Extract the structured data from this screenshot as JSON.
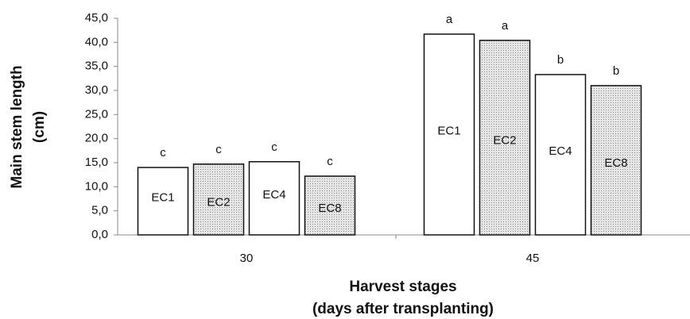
{
  "chart_data": {
    "type": "bar",
    "ylabel": [
      "Main stem length",
      "(cm)"
    ],
    "xlabel": [
      "Harvest stages",
      "(days after transplanting)"
    ],
    "categories": [
      "30",
      "45"
    ],
    "series": [
      {
        "name": "EC1",
        "color": "#ffffff",
        "values": [
          14.0,
          41.7
        ],
        "letters": [
          "c",
          "a"
        ]
      },
      {
        "name": "EC2",
        "color": "#d4d4d4",
        "values": [
          14.7,
          40.4
        ],
        "letters": [
          "c",
          "a"
        ]
      },
      {
        "name": "EC4",
        "color": "#ffffff",
        "values": [
          15.2,
          33.3
        ],
        "letters": [
          "c",
          "b"
        ]
      },
      {
        "name": "EC8",
        "color": "#d4d4d4",
        "values": [
          12.2,
          31.0
        ],
        "letters": [
          "c",
          "b"
        ]
      }
    ],
    "ylim": [
      0,
      45
    ],
    "yticks": [
      {
        "value": 0,
        "label": "0,0"
      },
      {
        "value": 5,
        "label": "5,0"
      },
      {
        "value": 10,
        "label": "10,0"
      },
      {
        "value": 15,
        "label": "15,0"
      },
      {
        "value": 20,
        "label": "20,0"
      },
      {
        "value": 25,
        "label": "25,0"
      },
      {
        "value": 30,
        "label": "30,0"
      },
      {
        "value": 35,
        "label": "35,0"
      },
      {
        "value": 40,
        "label": "40,0"
      },
      {
        "value": 45,
        "label": "45,0"
      }
    ]
  }
}
